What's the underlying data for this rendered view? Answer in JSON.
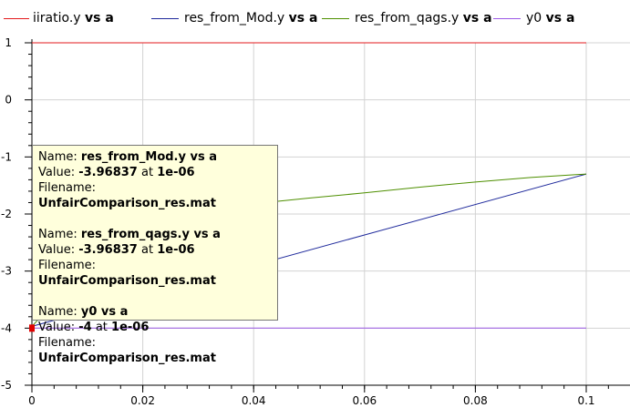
{
  "legend": {
    "items": [
      {
        "name": "iiratio.y",
        "suffix": "vs a",
        "color": "#e31a1c"
      },
      {
        "name": "res_from_Mod.y",
        "suffix": "vs a",
        "color": "#1f2a9c"
      },
      {
        "name": "res_from_qags.y",
        "suffix": "vs a",
        "color": "#4e8f00"
      },
      {
        "name": "y0",
        "suffix": "vs a",
        "color": "#9b59e6"
      }
    ]
  },
  "chart_data": {
    "type": "line",
    "xlim": [
      0,
      0.1
    ],
    "ylim": [
      -5,
      1
    ],
    "x_ticks": [
      "0",
      "0.02",
      "0.04",
      "0.06",
      "0.08",
      "0.1"
    ],
    "y_ticks": [
      "1",
      "0",
      "-1",
      "-2",
      "-3",
      "-4",
      "-5"
    ],
    "grid": true,
    "series": [
      {
        "name": "iiratio.y vs a",
        "color": "#e31a1c",
        "x": [
          0,
          0.1
        ],
        "y": [
          1,
          1
        ]
      },
      {
        "name": "res_from_Mod.y vs a",
        "color": "#1f2a9c",
        "x": [
          0,
          0.1
        ],
        "y": [
          -3.96837,
          -1.3
        ]
      },
      {
        "name": "res_from_qags.y vs a",
        "color": "#4e8f00",
        "x": [
          0,
          0.01,
          0.02,
          0.03,
          0.04,
          0.05,
          0.06,
          0.07,
          0.08,
          0.09,
          0.1
        ],
        "y": [
          -3.96837,
          -2.9,
          -2.35,
          -2.0,
          -1.82,
          -1.72,
          -1.63,
          -1.53,
          -1.44,
          -1.36,
          -1.3
        ]
      },
      {
        "name": "y0 vs a",
        "color": "#9b59e6",
        "x": [
          0,
          0.1
        ],
        "y": [
          -4,
          -4
        ]
      }
    ],
    "marker": {
      "x": 0,
      "y": -4,
      "color": "#e00000"
    }
  },
  "tooltip": {
    "entries": [
      {
        "name_label": "Name:",
        "name": "res_from_Mod.y vs a",
        "value_label": "Value:",
        "value": "-3.96837",
        "at_label": "at",
        "at": "1e-06",
        "file_label": "Filename:",
        "file": "UnfairComparison_res.mat"
      },
      {
        "name_label": "Name:",
        "name": "res_from_qags.y vs a",
        "value_label": "Value:",
        "value": "-3.96837",
        "at_label": "at",
        "at": "1e-06",
        "file_label": "Filename:",
        "file": "UnfairComparison_res.mat"
      },
      {
        "name_label": "Name:",
        "name": "y0 vs a",
        "value_label": "Value:",
        "value": "-4",
        "at_label": "at",
        "at": "1e-06",
        "file_label": "Filename:",
        "file": "UnfairComparison_res.mat"
      }
    ]
  }
}
